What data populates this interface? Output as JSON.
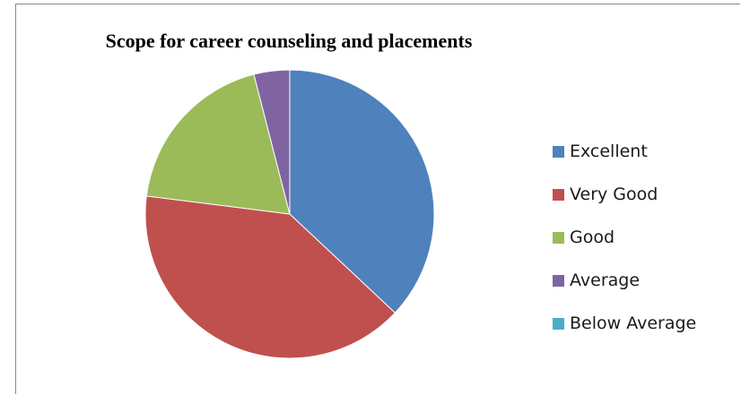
{
  "chart_data": {
    "type": "pie",
    "title": "Scope for career counseling and placements",
    "categories": [
      "Excellent",
      "Very Good",
      "Good",
      "Average",
      "Below Average"
    ],
    "values": [
      37,
      40,
      19,
      4,
      0
    ],
    "colors": [
      "#4F81BD",
      "#C0504D",
      "#9BBB59",
      "#8064A2",
      "#4BACC6"
    ],
    "legend_position": "right"
  }
}
